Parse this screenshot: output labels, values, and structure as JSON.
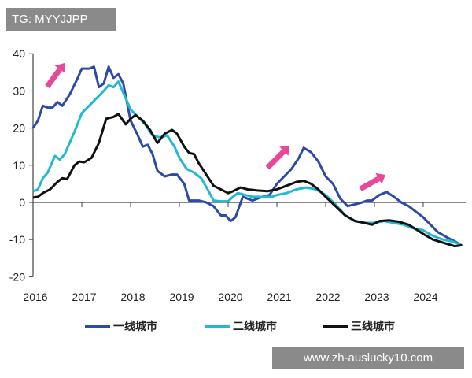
{
  "watermarks": {
    "top": "TG: MYYJJPP",
    "bottom": "www.zh-auslucky10.com"
  },
  "chart_data": {
    "type": "line",
    "title": "",
    "xlabel": "",
    "ylabel": "",
    "xlim": [
      2016,
      2024.9
    ],
    "ylim": [
      -20,
      40
    ],
    "yticks": [
      "40",
      "30",
      "20",
      "10",
      "0",
      "-10",
      "-20"
    ],
    "xticks": [
      "2016",
      "2017",
      "2018",
      "2019",
      "2020",
      "2021",
      "2022",
      "2023",
      "2024"
    ],
    "grid": false,
    "legend_position": "bottom",
    "annotations": "pink upward arrows near 2016.5, 2021.1, 2022.8",
    "arrow_color": "#e8489a",
    "series": [
      {
        "name": "一线城市",
        "color": "#2e4aa8",
        "x": [
          2016.0,
          2016.1,
          2016.2,
          2016.3,
          2016.4,
          2016.5,
          2016.6,
          2016.75,
          2016.9,
          2017.0,
          2017.15,
          2017.25,
          2017.35,
          2017.45,
          2017.55,
          2017.65,
          2017.75,
          2017.85,
          2018.0,
          2018.15,
          2018.25,
          2018.35,
          2018.45,
          2018.55,
          2018.7,
          2018.85,
          2018.95,
          2019.1,
          2019.2,
          2019.4,
          2019.55,
          2019.7,
          2019.85,
          2019.95,
          2020.05,
          2020.15,
          2020.3,
          2020.4,
          2020.5,
          2020.7,
          2020.85,
          2021.0,
          2021.15,
          2021.3,
          2021.45,
          2021.55,
          2021.7,
          2021.85,
          2022.0,
          2022.15,
          2022.3,
          2022.45,
          2022.6,
          2022.75,
          2022.85,
          2022.95,
          2023.1,
          2023.25,
          2023.4,
          2023.55,
          2023.7,
          2023.85,
          2024.0,
          2024.15,
          2024.3,
          2024.5,
          2024.65,
          2024.78
        ],
        "y": [
          20,
          22,
          26,
          25.5,
          25.5,
          27,
          26,
          29,
          33,
          36,
          36,
          36.5,
          31,
          32,
          36.5,
          33.5,
          34.5,
          32,
          22,
          18,
          15,
          15.5,
          13,
          8.5,
          7,
          7.5,
          7.5,
          5,
          0.5,
          0.5,
          0,
          -1,
          -3.5,
          -3.5,
          -5,
          -4,
          1.5,
          1,
          0.5,
          1.5,
          2,
          5,
          7,
          9,
          12,
          14.7,
          13.5,
          11,
          7,
          5,
          1,
          -1,
          -0.5,
          0,
          0.5,
          0.5,
          2,
          2.8,
          1.5,
          0,
          -1,
          -2.5,
          -4,
          -6,
          -8,
          -9.5,
          -10.5,
          -11.5
        ]
      },
      {
        "name": "二线城市",
        "color": "#22b8d0",
        "x": [
          2016.0,
          2016.1,
          2016.2,
          2016.3,
          2016.45,
          2016.55,
          2016.65,
          2016.85,
          2017.0,
          2017.15,
          2017.3,
          2017.45,
          2017.55,
          2017.65,
          2017.75,
          2017.9,
          2018.0,
          2018.15,
          2018.3,
          2018.45,
          2018.6,
          2018.75,
          2018.9,
          2019.0,
          2019.15,
          2019.3,
          2019.45,
          2019.6,
          2019.7,
          2019.85,
          2020.0,
          2020.1,
          2020.2,
          2020.35,
          2020.5,
          2020.7,
          2020.9,
          2021.0,
          2021.2,
          2021.4,
          2021.6,
          2021.8,
          2022.0,
          2022.2,
          2022.4,
          2022.6,
          2022.8,
          2023.0,
          2023.2,
          2023.4,
          2023.6,
          2023.8,
          2024.0,
          2024.2,
          2024.4,
          2024.6,
          2024.78
        ],
        "y": [
          3,
          3.5,
          6.5,
          8,
          12.5,
          11.5,
          13,
          19,
          24,
          26,
          28,
          30,
          31.5,
          31,
          32.5,
          28,
          25,
          23,
          21,
          18,
          17.5,
          18,
          15,
          12,
          9,
          8,
          6.5,
          3,
          0.5,
          0.3,
          0.3,
          1.5,
          2.5,
          2,
          1.5,
          1.5,
          1.5,
          2,
          2.5,
          3.5,
          4,
          3.5,
          2,
          -0.5,
          -3.5,
          -5,
          -5.5,
          -5.5,
          -5,
          -5.5,
          -6,
          -7,
          -7.5,
          -9,
          -10,
          -10.5,
          -11.5
        ]
      },
      {
        "name": "三线城市",
        "color": "#111111",
        "x": [
          2016.0,
          2016.1,
          2016.2,
          2016.35,
          2016.5,
          2016.6,
          2016.7,
          2016.85,
          2016.95,
          2017.05,
          2017.2,
          2017.35,
          2017.5,
          2017.65,
          2017.75,
          2017.9,
          2018.0,
          2018.1,
          2018.25,
          2018.4,
          2018.55,
          2018.7,
          2018.85,
          2018.95,
          2019.1,
          2019.2,
          2019.3,
          2019.4,
          2019.55,
          2019.7,
          2019.85,
          2020.0,
          2020.1,
          2020.25,
          2020.4,
          2020.6,
          2020.8,
          2021.0,
          2021.2,
          2021.4,
          2021.55,
          2021.7,
          2021.85,
          2022.0,
          2022.2,
          2022.4,
          2022.6,
          2022.8,
          2022.95,
          2023.1,
          2023.3,
          2023.5,
          2023.7,
          2023.85,
          2024.0,
          2024.2,
          2024.45,
          2024.65,
          2024.8
        ],
        "y": [
          1.3,
          1.5,
          2.5,
          3.5,
          5.5,
          6.5,
          6.3,
          10,
          11,
          10.8,
          12,
          16,
          22.5,
          23,
          23.8,
          21,
          22.5,
          23.5,
          22,
          19.5,
          16,
          18.5,
          19.5,
          18.5,
          15,
          13.3,
          13,
          10.5,
          7.5,
          4.5,
          3.5,
          2.5,
          3,
          4,
          3.5,
          3.2,
          3,
          3.5,
          4.5,
          5.5,
          5.8,
          5,
          3.5,
          1.5,
          -1,
          -3.5,
          -5,
          -5.5,
          -6,
          -5,
          -4.8,
          -5.2,
          -6,
          -7.2,
          -8.5,
          -10,
          -11,
          -11.8,
          -11.5
        ]
      }
    ]
  }
}
